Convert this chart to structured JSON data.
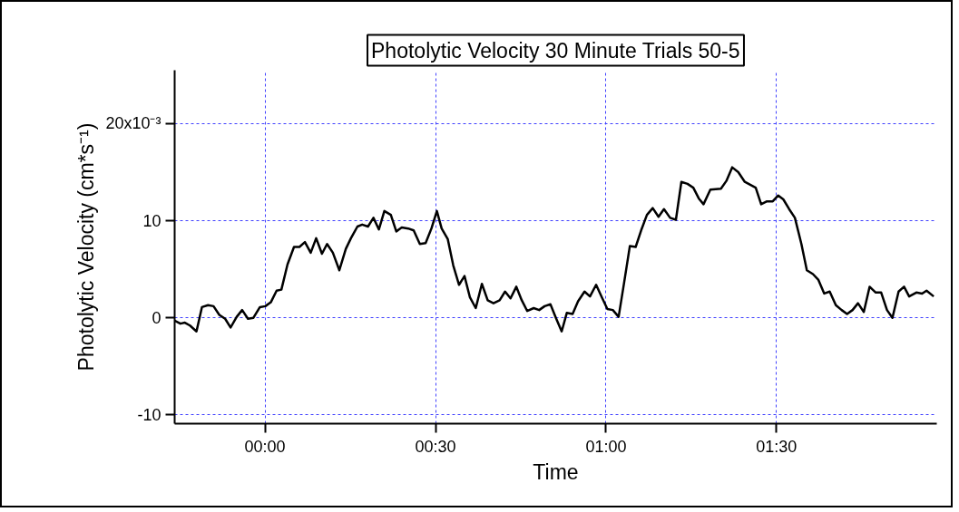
{
  "chart_data": {
    "type": "line",
    "title": "Photolytic Velocity 30 Minute Trials 50-5",
    "xlabel": "Time",
    "ylabel": "Photolytic Velocity (cm*s⁻¹)",
    "xlim": [
      -0.265,
      1.97
    ],
    "ylim": [
      -10.9,
      25.5
    ],
    "xticks": [
      {
        "value": 0,
        "label": "00:00"
      },
      {
        "value": 0.5,
        "label": "00:30"
      },
      {
        "value": 1,
        "label": "01:00"
      },
      {
        "value": 1.5,
        "label": "01:30"
      }
    ],
    "yticks": [
      -10,
      0,
      10,
      {
        "value": 20,
        "label": null
      }
    ],
    "annotations": [
      "20x10⁻³"
    ],
    "grid": true,
    "marker": "none",
    "line_style": "solid",
    "series": [
      {
        "color": "#000000",
        "x": [
          -0.265,
          -0.248,
          -0.235,
          -0.22,
          -0.201,
          -0.185,
          -0.167,
          -0.151,
          -0.134,
          -0.117,
          -0.101,
          -0.083,
          -0.067,
          -0.05,
          -0.034,
          -0.015,
          0.001,
          0.017,
          0.034,
          0.048,
          0.066,
          0.085,
          0.101,
          0.117,
          0.134,
          0.15,
          0.167,
          0.182,
          0.199,
          0.218,
          0.237,
          0.252,
          0.271,
          0.285,
          0.302,
          0.318,
          0.334,
          0.35,
          0.369,
          0.385,
          0.401,
          0.42,
          0.436,
          0.454,
          0.471,
          0.488,
          0.504,
          0.518,
          0.536,
          0.552,
          0.569,
          0.585,
          0.601,
          0.618,
          0.636,
          0.653,
          0.67,
          0.688,
          0.704,
          0.72,
          0.737,
          0.753,
          0.769,
          0.788,
          0.804,
          0.82,
          0.837,
          0.853,
          0.87,
          0.885,
          0.902,
          0.918,
          0.937,
          0.953,
          0.971,
          0.988,
          1.004,
          1.02,
          1.037,
          1.053,
          1.07,
          1.087,
          1.104,
          1.12,
          1.137,
          1.154,
          1.17,
          1.188,
          1.205,
          1.221,
          1.239,
          1.256,
          1.272,
          1.286,
          1.306,
          1.337,
          1.353,
          1.37,
          1.388,
          1.407,
          1.439,
          1.455,
          1.472,
          1.489,
          1.505,
          1.52,
          1.537,
          1.554,
          1.573,
          1.589,
          1.607,
          1.623,
          1.64,
          1.656,
          1.674,
          1.691,
          1.707,
          1.723,
          1.739,
          1.756,
          1.773,
          1.791,
          1.807,
          1.824,
          1.84,
          1.858,
          1.874,
          1.889,
          1.91,
          1.927,
          1.94,
          1.961
        ],
        "values": [
          -0.3,
          -0.6,
          -0.5,
          -0.8,
          -1.4,
          1.1,
          1.3,
          1.2,
          0.3,
          -0.1,
          -1.0,
          0.1,
          0.8,
          -0.1,
          0.0,
          1.1,
          1.2,
          1.6,
          2.8,
          2.9,
          5.5,
          7.3,
          7.3,
          7.8,
          6.7,
          8.2,
          6.6,
          7.6,
          6.7,
          4.9,
          7.1,
          8.2,
          9.4,
          9.6,
          9.4,
          10.3,
          9.1,
          11.0,
          10.6,
          8.9,
          9.3,
          9.2,
          9.0,
          7.6,
          7.7,
          9.2,
          11.0,
          9.2,
          8.1,
          5.4,
          3.4,
          4.3,
          2.1,
          1.0,
          3.5,
          1.8,
          1.5,
          1.8,
          2.7,
          2.0,
          3.2,
          1.8,
          0.7,
          1.0,
          0.8,
          1.2,
          1.4,
          0.0,
          -1.4,
          0.5,
          0.4,
          1.7,
          2.7,
          2.2,
          3.4,
          2.1,
          0.9,
          0.8,
          0.1,
          3.6,
          7.4,
          7.3,
          9.1,
          10.6,
          11.3,
          10.4,
          11.2,
          10.3,
          10.1,
          14.0,
          13.8,
          13.4,
          12.3,
          11.7,
          13.2,
          13.3,
          14.1,
          15.5,
          15.0,
          14.0,
          13.4,
          11.7,
          12.0,
          12.0,
          12.6,
          12.2,
          11.2,
          10.3,
          7.6,
          4.9,
          4.5,
          3.9,
          2.5,
          2.7,
          1.3,
          0.8,
          0.4,
          0.8,
          1.5,
          0.6,
          3.2,
          2.6,
          2.6,
          0.8,
          0.0,
          2.7,
          3.2,
          2.2,
          2.6,
          2.5,
          2.8,
          2.2
        ]
      }
    ]
  }
}
